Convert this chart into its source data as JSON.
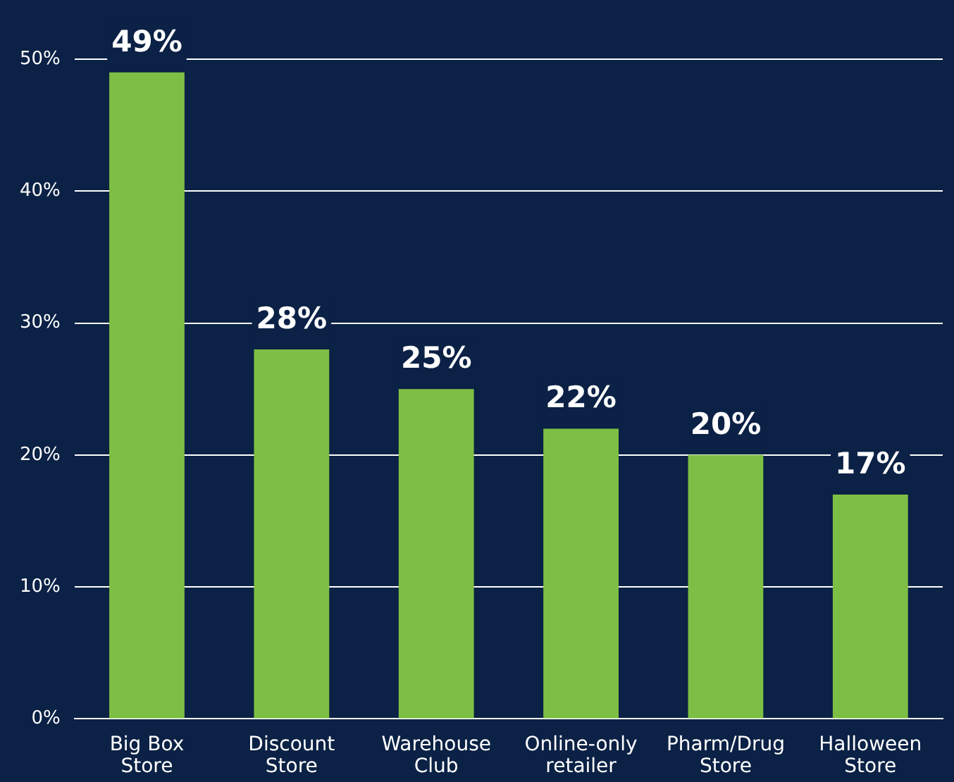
{
  "chart_data": {
    "type": "bar",
    "categories": [
      "Big Box Store",
      "Discount Store",
      "Warehouse Club",
      "Online-only retailer",
      "Pharm/Drug Store",
      "Halloween Store"
    ],
    "values": [
      49,
      28,
      25,
      22,
      20,
      17
    ],
    "value_labels": [
      "49%",
      "28%",
      "25%",
      "22%",
      "20%",
      "17%"
    ],
    "color": "#7dbf44",
    "ylim": [
      0,
      50
    ],
    "yticks": [
      {
        "value": 0,
        "label": "0%"
      },
      {
        "value": 10,
        "label": "10%"
      },
      {
        "value": 20,
        "label": "20%"
      },
      {
        "value": 30,
        "label": "30%"
      },
      {
        "value": 40,
        "label": "40%"
      },
      {
        "value": 50,
        "label": "50%"
      }
    ],
    "grid": "y"
  }
}
